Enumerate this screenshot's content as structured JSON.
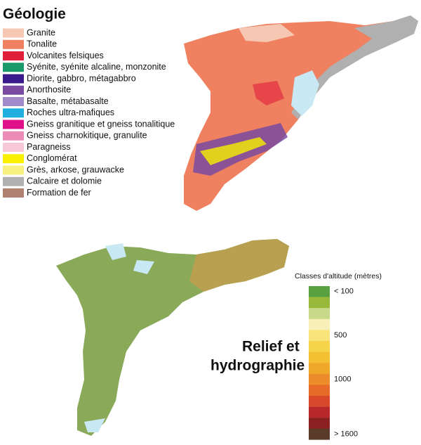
{
  "geology": {
    "title": "Géologie",
    "items": [
      {
        "label": "Granite",
        "color": "#f6c8b4"
      },
      {
        "label": "Tonalite",
        "color": "#ef8060"
      },
      {
        "label": "Volcanites felsiques",
        "color": "#e0203a"
      },
      {
        "label": "Syénite, syénite alcaline, monzonite",
        "color": "#1a9a6a"
      },
      {
        "label": "Diorite, gabbro, métagabbro",
        "color": "#3a1a8a"
      },
      {
        "label": "Anorthosite",
        "color": "#7a4aa0"
      },
      {
        "label": "Basalte, métabasalte",
        "color": "#a08ac8"
      },
      {
        "label": "Roches ultra-mafiques",
        "color": "#20b0e0"
      },
      {
        "label": "Gneiss granitique et gneiss tonalitique",
        "color": "#e0108a"
      },
      {
        "label": "Gneiss charnokitique, granulite",
        "color": "#ec8ab8"
      },
      {
        "label": "Paragneiss",
        "color": "#f6c8d8"
      },
      {
        "label": "Conglomérat",
        "color": "#f8f000"
      },
      {
        "label": "Grès, arkose, grauwacke",
        "color": "#f8f080"
      },
      {
        "label": "Calcaire et dolomie",
        "color": "#b0b0b0"
      },
      {
        "label": "Formation de fer",
        "color": "#b08070"
      }
    ]
  },
  "relief": {
    "title_line1": "Relief et",
    "title_line2": "hydrographie",
    "scale_title": "Classes d'altitude (mètres)",
    "colors": [
      "#58a040",
      "#98b83a",
      "#c8da8a",
      "#f8f0b8",
      "#f8e47a",
      "#f6d44a",
      "#f2c030",
      "#f0a828",
      "#ec8c2a",
      "#e66a28",
      "#d8482a",
      "#b8282a",
      "#8a2020",
      "#5a3a28"
    ],
    "labels": [
      "< 100",
      null,
      null,
      null,
      "500",
      null,
      null,
      null,
      "1000",
      null,
      null,
      null,
      null,
      "> 1600"
    ]
  }
}
